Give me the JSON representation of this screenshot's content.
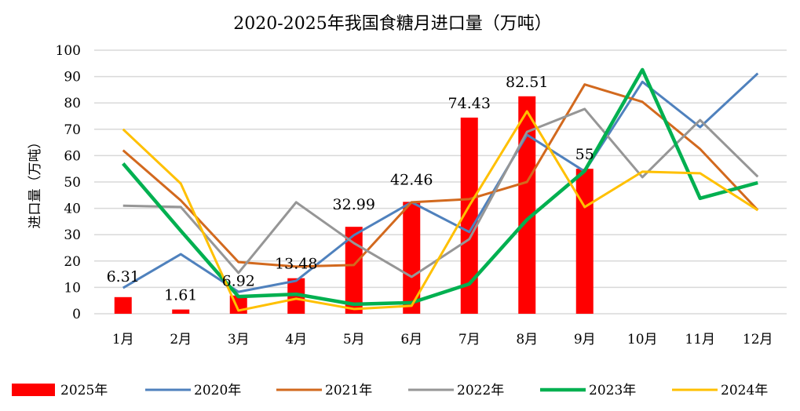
{
  "chart_data": {
    "type": "bar+line",
    "title": "2020-2025年我国食糖月进口量（万吨）",
    "ylabel": "进口量（万吨）",
    "xlabel": "",
    "ylim": [
      0,
      100
    ],
    "yticks": [
      0,
      10,
      20,
      30,
      40,
      50,
      60,
      70,
      80,
      90,
      100
    ],
    "grid": true,
    "legend_position": "bottom",
    "categories": [
      "1月",
      "2月",
      "3月",
      "4月",
      "5月",
      "6月",
      "7月",
      "8月",
      "9月",
      "10月",
      "11月",
      "12月"
    ],
    "bar_series": {
      "name": "2025年",
      "color": "#FF0000",
      "values": [
        6.31,
        1.61,
        6.92,
        13.48,
        32.99,
        42.46,
        74.43,
        82.51,
        55
      ],
      "labels": [
        "6.31",
        "1.61",
        "6.92",
        "13.48",
        "32.99",
        "42.46",
        "74.43",
        "82.51",
        "55"
      ]
    },
    "series": [
      {
        "name": "2020年",
        "color": "#4F81BD",
        "values": [
          9.8,
          22.6,
          8.3,
          12.5,
          29.8,
          42.3,
          31.0,
          67.9,
          54.0,
          88.0,
          70.8,
          91.2
        ]
      },
      {
        "name": "2021年",
        "color": "#D2691E",
        "values": [
          62.0,
          43.0,
          19.6,
          17.9,
          18.5,
          42.3,
          43.5,
          50.0,
          87.0,
          80.4,
          62.5,
          39.3
        ]
      },
      {
        "name": "2022年",
        "color": "#969696",
        "values": [
          41.0,
          40.5,
          15.5,
          42.3,
          26.8,
          14.0,
          28.3,
          69.0,
          77.7,
          51.8,
          73.5,
          52.0
        ]
      },
      {
        "name": "2023年",
        "color": "#00B050",
        "values": [
          57.0,
          31.5,
          6.5,
          7.4,
          3.6,
          4.2,
          11.3,
          35.7,
          54.2,
          92.6,
          43.8,
          49.7
        ]
      },
      {
        "name": "2024年",
        "color": "#FFC000",
        "values": [
          70.0,
          49.4,
          1.2,
          5.7,
          1.8,
          3.0,
          41.0,
          76.8,
          40.5,
          53.9,
          53.3,
          39.3
        ]
      }
    ]
  }
}
